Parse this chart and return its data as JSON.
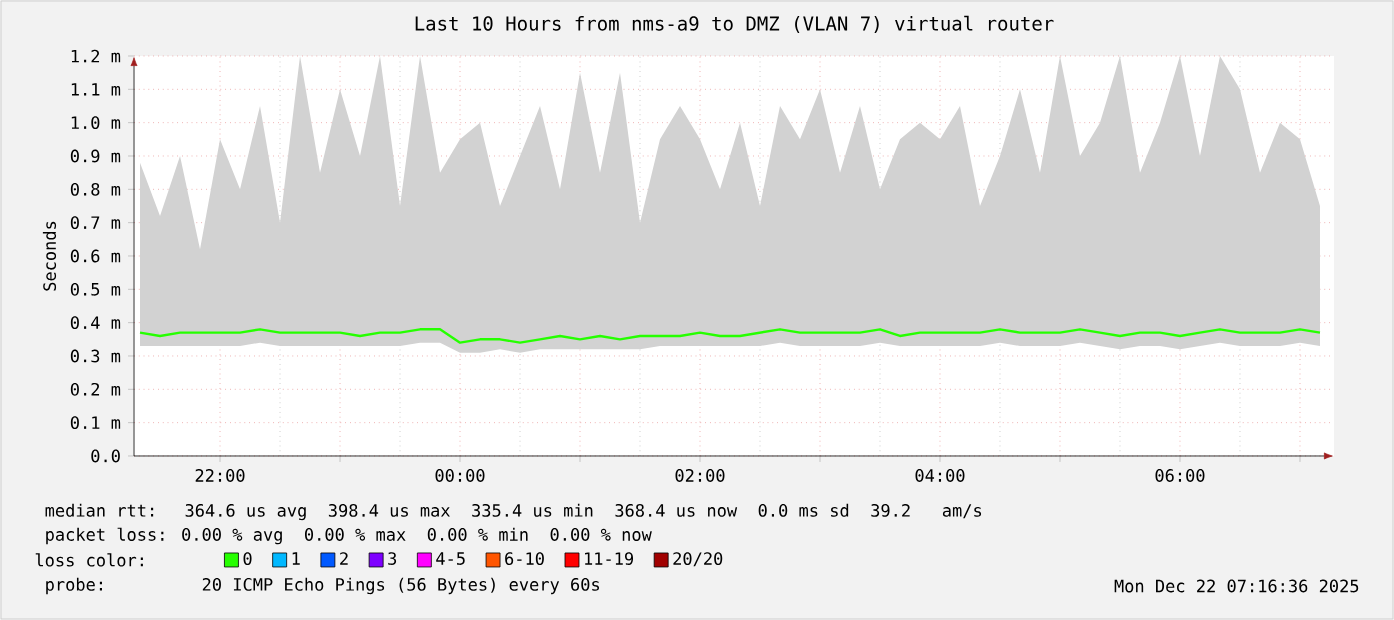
{
  "chart_data": {
    "type": "line",
    "title": "Last 10 Hours from nms-a9 to DMZ (VLAN 7) virtual router",
    "ylabel": "Seconds",
    "legend_title": "loss color:",
    "legend": "bottom",
    "grid": true,
    "xlim": [
      "2025-12-21T21:17",
      "2025-12-22T07:17"
    ],
    "xticks": [
      {
        "value": "2025-12-21T22:00",
        "label": "22:00"
      },
      {
        "value": "2025-12-21T23:00",
        "label": null
      },
      {
        "value": "2025-12-22T00:00",
        "label": "00:00"
      },
      {
        "value": "2025-12-22T01:00",
        "label": null
      },
      {
        "value": "2025-12-22T02:00",
        "label": "02:00"
      },
      {
        "value": "2025-12-22T03:00",
        "label": null
      },
      {
        "value": "2025-12-22T04:00",
        "label": "04:00"
      },
      {
        "value": "2025-12-22T05:00",
        "label": null
      },
      {
        "value": "2025-12-22T06:00",
        "label": "06:00"
      },
      {
        "value": "2025-12-22T07:00",
        "label": null
      }
    ],
    "ylim": [
      0,
      1.2
    ],
    "yticks": [
      {
        "value": 0,
        "label": "0.0"
      },
      {
        "value": 0.1,
        "label": "0.1 m"
      },
      {
        "value": 0.2,
        "label": "0.2 m"
      },
      {
        "value": 0.3,
        "label": "0.3 m"
      },
      {
        "value": 0.4,
        "label": "0.4 m"
      },
      {
        "value": 0.5,
        "label": "0.5 m"
      },
      {
        "value": 0.6,
        "label": "0.6 m"
      },
      {
        "value": 0.7,
        "label": "0.7 m"
      },
      {
        "value": 0.8,
        "label": "0.8 m"
      },
      {
        "value": 0.9,
        "label": "0.9 m"
      },
      {
        "value": 1.0,
        "label": "1.0 m"
      },
      {
        "value": 1.1,
        "label": "1.1 m"
      },
      {
        "value": 1.2,
        "label": "1.2 m"
      }
    ],
    "x": [
      "2025-12-21T21:20",
      "2025-12-21T21:30",
      "2025-12-21T21:40",
      "2025-12-21T21:50",
      "2025-12-21T22:00",
      "2025-12-21T22:10",
      "2025-12-21T22:20",
      "2025-12-21T22:30",
      "2025-12-21T22:40",
      "2025-12-21T22:50",
      "2025-12-21T23:00",
      "2025-12-21T23:10",
      "2025-12-21T23:20",
      "2025-12-21T23:30",
      "2025-12-21T23:40",
      "2025-12-21T23:50",
      "2025-12-22T00:00",
      "2025-12-22T00:10",
      "2025-12-22T00:20",
      "2025-12-22T00:30",
      "2025-12-22T00:40",
      "2025-12-22T00:50",
      "2025-12-22T01:00",
      "2025-12-22T01:10",
      "2025-12-22T01:20",
      "2025-12-22T01:30",
      "2025-12-22T01:40",
      "2025-12-22T01:50",
      "2025-12-22T02:00",
      "2025-12-22T02:10",
      "2025-12-22T02:20",
      "2025-12-22T02:30",
      "2025-12-22T02:40",
      "2025-12-22T02:50",
      "2025-12-22T03:00",
      "2025-12-22T03:10",
      "2025-12-22T03:20",
      "2025-12-22T03:30",
      "2025-12-22T03:40",
      "2025-12-22T03:50",
      "2025-12-22T04:00",
      "2025-12-22T04:10",
      "2025-12-22T04:20",
      "2025-12-22T04:30",
      "2025-12-22T04:40",
      "2025-12-22T04:50",
      "2025-12-22T05:00",
      "2025-12-22T05:10",
      "2025-12-22T05:20",
      "2025-12-22T05:30",
      "2025-12-22T05:40",
      "2025-12-22T05:50",
      "2025-12-22T06:00",
      "2025-12-22T06:10",
      "2025-12-22T06:20",
      "2025-12-22T06:30",
      "2025-12-22T06:40",
      "2025-12-22T06:50",
      "2025-12-22T07:00",
      "2025-12-22T07:10"
    ],
    "series": [
      {
        "name": "0",
        "color": "#26ff00",
        "values": [
          0.37,
          0.36,
          0.37,
          0.37,
          0.37,
          0.37,
          0.38,
          0.37,
          0.37,
          0.37,
          0.37,
          0.36,
          0.37,
          0.37,
          0.38,
          0.38,
          0.34,
          0.35,
          0.35,
          0.34,
          0.35,
          0.36,
          0.35,
          0.36,
          0.35,
          0.36,
          0.36,
          0.36,
          0.37,
          0.36,
          0.36,
          0.37,
          0.38,
          0.37,
          0.37,
          0.37,
          0.37,
          0.38,
          0.36,
          0.37,
          0.37,
          0.37,
          0.37,
          0.38,
          0.37,
          0.37,
          0.37,
          0.38,
          0.37,
          0.36,
          0.37,
          0.37,
          0.36,
          0.37,
          0.38,
          0.37,
          0.37,
          0.37,
          0.38,
          0.37
        ],
        "lower": [
          0.33,
          0.33,
          0.33,
          0.33,
          0.33,
          0.33,
          0.34,
          0.33,
          0.33,
          0.33,
          0.33,
          0.33,
          0.33,
          0.33,
          0.34,
          0.34,
          0.31,
          0.31,
          0.32,
          0.31,
          0.32,
          0.32,
          0.32,
          0.32,
          0.32,
          0.32,
          0.33,
          0.33,
          0.33,
          0.33,
          0.33,
          0.33,
          0.34,
          0.33,
          0.33,
          0.33,
          0.33,
          0.34,
          0.33,
          0.33,
          0.33,
          0.33,
          0.33,
          0.34,
          0.33,
          0.33,
          0.33,
          0.34,
          0.33,
          0.32,
          0.33,
          0.33,
          0.32,
          0.33,
          0.34,
          0.33,
          0.33,
          0.33,
          0.34,
          0.33
        ],
        "upper": [
          0.88,
          0.72,
          0.9,
          0.62,
          0.95,
          0.8,
          1.05,
          0.7,
          1.2,
          0.85,
          1.1,
          0.9,
          1.2,
          0.75,
          1.2,
          0.85,
          0.95,
          1.0,
          0.75,
          0.9,
          1.05,
          0.8,
          1.15,
          0.85,
          1.15,
          0.7,
          0.95,
          1.05,
          0.95,
          0.8,
          1.0,
          0.75,
          1.05,
          0.95,
          1.1,
          0.85,
          1.05,
          0.8,
          0.95,
          1.0,
          0.95,
          1.05,
          0.75,
          0.9,
          1.1,
          0.85,
          1.2,
          0.9,
          1.0,
          1.2,
          0.85,
          1.0,
          1.2,
          0.9,
          1.2,
          1.1,
          0.85,
          1.0,
          0.95,
          0.75
        ]
      },
      {
        "name": "1",
        "color": "#00b8ff",
        "values": [
          null,
          null,
          null,
          null,
          null,
          null,
          null,
          null,
          null,
          null,
          null,
          null,
          null,
          null,
          null,
          null,
          null,
          null,
          null,
          null,
          null,
          null,
          null,
          null,
          null,
          null,
          null,
          null,
          null,
          null,
          null,
          null,
          null,
          null,
          null,
          null,
          null,
          null,
          null,
          null,
          null,
          null,
          null,
          null,
          null,
          null,
          null,
          null,
          null,
          null,
          null,
          null,
          null,
          null,
          null,
          null,
          null,
          null,
          null,
          null
        ]
      },
      {
        "name": "2",
        "color": "#0059ff",
        "values": [
          null,
          null,
          null,
          null,
          null,
          null,
          null,
          null,
          null,
          null,
          null,
          null,
          null,
          null,
          null,
          null,
          null,
          null,
          null,
          null,
          null,
          null,
          null,
          null,
          null,
          null,
          null,
          null,
          null,
          null,
          null,
          null,
          null,
          null,
          null,
          null,
          null,
          null,
          null,
          null,
          null,
          null,
          null,
          null,
          null,
          null,
          null,
          null,
          null,
          null,
          null,
          null,
          null,
          null,
          null,
          null,
          null,
          null,
          null,
          null
        ]
      },
      {
        "name": "3",
        "color": "#7e00ff",
        "values": [
          null,
          null,
          null,
          null,
          null,
          null,
          null,
          null,
          null,
          null,
          null,
          null,
          null,
          null,
          null,
          null,
          null,
          null,
          null,
          null,
          null,
          null,
          null,
          null,
          null,
          null,
          null,
          null,
          null,
          null,
          null,
          null,
          null,
          null,
          null,
          null,
          null,
          null,
          null,
          null,
          null,
          null,
          null,
          null,
          null,
          null,
          null,
          null,
          null,
          null,
          null,
          null,
          null,
          null,
          null,
          null,
          null,
          null,
          null,
          null
        ]
      },
      {
        "name": "4-5",
        "color": "#ff00ff",
        "values": [
          null,
          null,
          null,
          null,
          null,
          null,
          null,
          null,
          null,
          null,
          null,
          null,
          null,
          null,
          null,
          null,
          null,
          null,
          null,
          null,
          null,
          null,
          null,
          null,
          null,
          null,
          null,
          null,
          null,
          null,
          null,
          null,
          null,
          null,
          null,
          null,
          null,
          null,
          null,
          null,
          null,
          null,
          null,
          null,
          null,
          null,
          null,
          null,
          null,
          null,
          null,
          null,
          null,
          null,
          null,
          null,
          null,
          null,
          null,
          null
        ]
      },
      {
        "name": "6-10",
        "color": "#ff5500",
        "values": [
          null,
          null,
          null,
          null,
          null,
          null,
          null,
          null,
          null,
          null,
          null,
          null,
          null,
          null,
          null,
          null,
          null,
          null,
          null,
          null,
          null,
          null,
          null,
          null,
          null,
          null,
          null,
          null,
          null,
          null,
          null,
          null,
          null,
          null,
          null,
          null,
          null,
          null,
          null,
          null,
          null,
          null,
          null,
          null,
          null,
          null,
          null,
          null,
          null,
          null,
          null,
          null,
          null,
          null,
          null,
          null,
          null,
          null,
          null,
          null
        ]
      },
      {
        "name": "11-19",
        "color": "#ff0000",
        "values": [
          null,
          null,
          null,
          null,
          null,
          null,
          null,
          null,
          null,
          null,
          null,
          null,
          null,
          null,
          null,
          null,
          null,
          null,
          null,
          null,
          null,
          null,
          null,
          null,
          null,
          null,
          null,
          null,
          null,
          null,
          null,
          null,
          null,
          null,
          null,
          null,
          null,
          null,
          null,
          null,
          null,
          null,
          null,
          null,
          null,
          null,
          null,
          null,
          null,
          null,
          null,
          null,
          null,
          null,
          null,
          null,
          null,
          null,
          null,
          null
        ]
      },
      {
        "name": "20/20",
        "color": "#a10000",
        "values": [
          null,
          null,
          null,
          null,
          null,
          null,
          null,
          null,
          null,
          null,
          null,
          null,
          null,
          null,
          null,
          null,
          null,
          null,
          null,
          null,
          null,
          null,
          null,
          null,
          null,
          null,
          null,
          null,
          null,
          null,
          null,
          null,
          null,
          null,
          null,
          null,
          null,
          null,
          null,
          null,
          null,
          null,
          null,
          null,
          null,
          null,
          null,
          null,
          null,
          null,
          null,
          null,
          null,
          null,
          null,
          null,
          null,
          null,
          null,
          null
        ]
      }
    ],
    "annotations": [
      "median rtt:  364.6 us avg  398.4 us max  335.4 us min  368.4 us now  0.0 ms sd  39.2   am/s",
      "packet loss: 0.00 % avg  0.00 % max  0.00 % min  0.00 % now",
      "probe:       20 ICMP Echo Pings (56 Bytes) every 60s",
      "Mon Dec 22 07:16:36 2025"
    ]
  }
}
